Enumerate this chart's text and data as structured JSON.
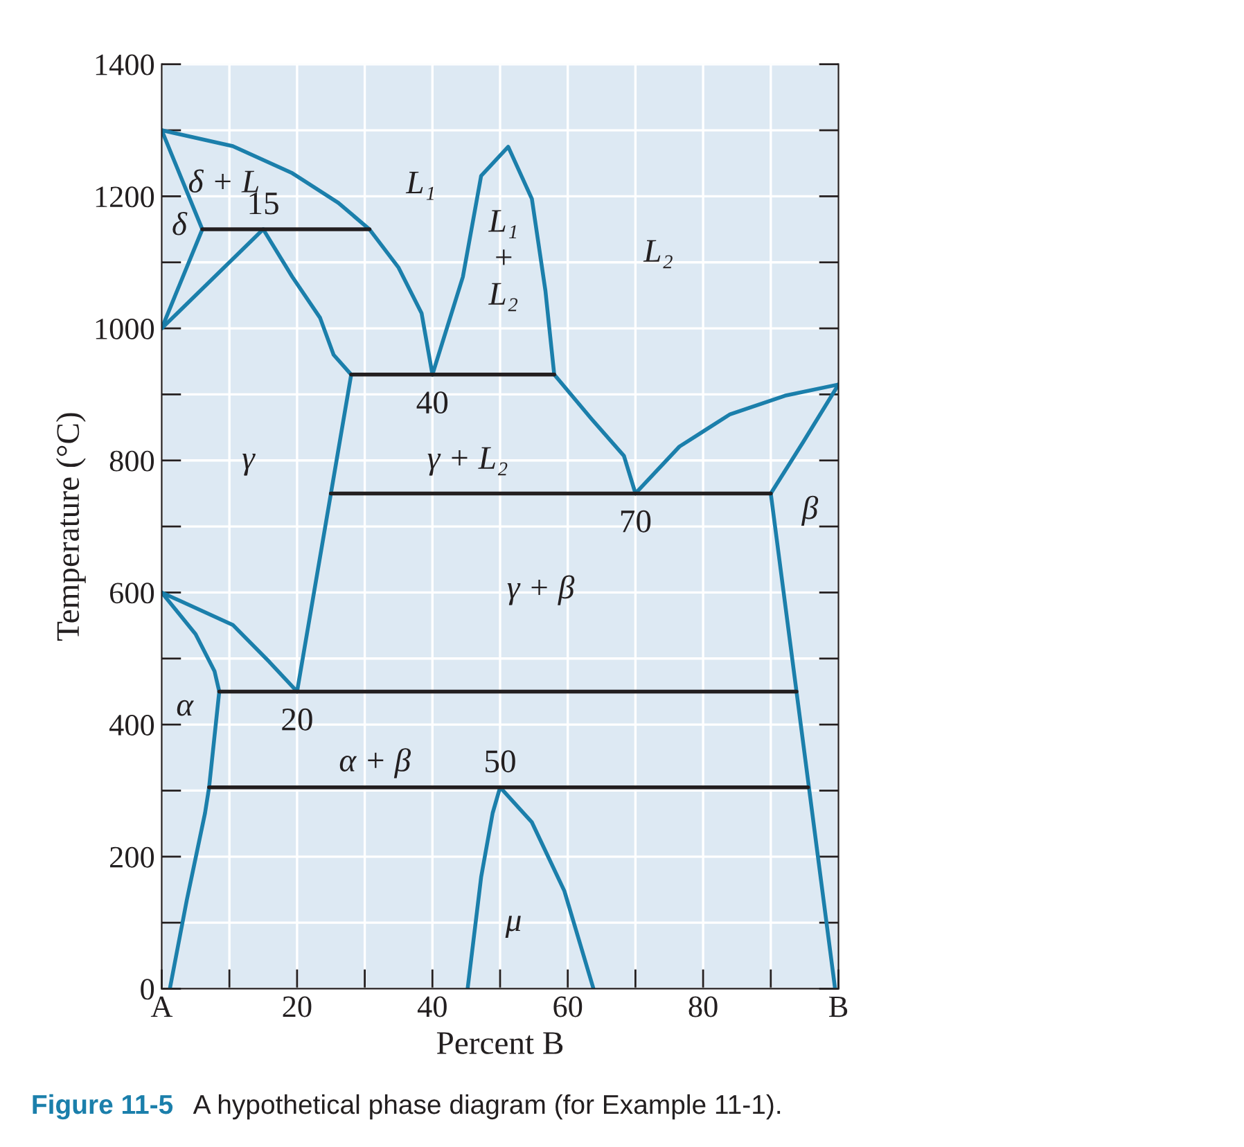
{
  "chart_data": {
    "type": "line",
    "xlabel": "Percent B",
    "ylabel": "Temperature (°C)",
    "xlim": [
      0,
      100
    ],
    "ylim": [
      0,
      1400
    ],
    "xticks": [
      {
        "value": 0,
        "label": "A"
      },
      {
        "value": 10,
        "label": null
      },
      20,
      {
        "value": 30,
        "label": null
      },
      40,
      {
        "value": 50,
        "label": null
      },
      60,
      {
        "value": 70,
        "label": null
      },
      80,
      {
        "value": 90,
        "label": null
      },
      {
        "value": 100,
        "label": "B"
      }
    ],
    "yticks": [
      0,
      {
        "value": 100,
        "label": null
      },
      200,
      {
        "value": 300,
        "label": null
      },
      400,
      {
        "value": 500,
        "label": null
      },
      600,
      {
        "value": 700,
        "label": null
      },
      800,
      {
        "value": 900,
        "label": null
      },
      1000,
      {
        "value": 1100,
        "label": null
      },
      1200,
      {
        "value": 1300,
        "label": null
      },
      1400
    ],
    "grid": true,
    "marker": "none",
    "line_style": "solid",
    "series": [
      {
        "color": "#1b7fab",
        "x": [
          0,
          6,
          0
        ],
        "values": [
          1300,
          1150,
          1000
        ]
      },
      {
        "color": "#1b7fab",
        "x": [
          0,
          15
        ],
        "values": [
          1000,
          1150
        ]
      },
      {
        "color": "#1b7fab",
        "x": [
          0,
          10.5,
          19.3,
          26.1,
          30.7,
          35,
          38.4,
          40
        ],
        "values": [
          1300,
          1276,
          1235,
          1190,
          1150,
          1092,
          1023,
          930
        ]
      },
      {
        "color": "#1b7fab",
        "x": [
          15,
          19.3,
          23.4,
          25.4,
          28
        ],
        "values": [
          1150,
          1078,
          1016,
          960,
          930
        ]
      },
      {
        "color": "#1b7fab",
        "x": [
          28,
          25,
          20
        ],
        "values": [
          930,
          750,
          450
        ]
      },
      {
        "color": "#1b7fab",
        "x": [
          40,
          44.5,
          47.2,
          51.2,
          54.7,
          56.7,
          58
        ],
        "values": [
          930,
          1078,
          1231,
          1275,
          1196,
          1057,
          930
        ]
      },
      {
        "color": "#1b7fab",
        "x": [
          58,
          63.5,
          68.3,
          70
        ],
        "values": [
          930,
          863,
          807,
          750
        ]
      },
      {
        "color": "#1b7fab",
        "x": [
          70,
          76.5,
          84,
          92.1,
          100
        ],
        "values": [
          750,
          821,
          870,
          898,
          915
        ]
      },
      {
        "color": "#1b7fab",
        "x": [
          100,
          94.8,
          90,
          99.5
        ],
        "values": [
          915,
          828,
          750,
          0
        ]
      },
      {
        "color": "#1b7fab",
        "x": [
          0,
          5,
          7.8,
          8.5,
          7,
          6.4,
          3.7,
          1.2
        ],
        "values": [
          600,
          537,
          481,
          450,
          305,
          266,
          134,
          0
        ]
      },
      {
        "color": "#1b7fab",
        "x": [
          0,
          10.5,
          15.9,
          20
        ],
        "values": [
          600,
          551,
          495,
          450
        ]
      },
      {
        "color": "#1b7fab",
        "x": [
          45.2,
          47.2,
          48.9,
          50,
          54.7,
          59.5,
          63.8
        ],
        "values": [
          0,
          169,
          266,
          305,
          252,
          148,
          0
        ]
      },
      {
        "color": "#231f20",
        "x": [
          6,
          30.7
        ],
        "values": [
          1150,
          1150
        ]
      },
      {
        "color": "#231f20",
        "x": [
          28,
          58
        ],
        "values": [
          930,
          930
        ]
      },
      {
        "color": "#231f20",
        "x": [
          25,
          90
        ],
        "values": [
          750,
          750
        ]
      },
      {
        "color": "#231f20",
        "x": [
          8.5,
          93.8
        ],
        "values": [
          450,
          450
        ]
      },
      {
        "color": "#231f20",
        "x": [
          7,
          95.5
        ],
        "values": [
          305,
          305
        ]
      }
    ],
    "annotations": [
      {
        "text": "15",
        "x": 15,
        "y": 1150
      },
      {
        "text": "40",
        "x": 40,
        "y": 930
      },
      {
        "text": "70",
        "x": 70,
        "y": 750
      },
      {
        "text": "20",
        "x": 20,
        "y": 450
      },
      {
        "text": "50",
        "x": 50,
        "y": 305
      },
      "δ + L",
      "δ",
      "L₁",
      "L₁\n+\nL₂",
      "L₂",
      "γ",
      "γ + L₂",
      "β",
      "γ + β",
      "α",
      "α + β",
      "μ",
      "Figure 11-5",
      "A hypothetical phase diagram (for Example 11-1)."
    ]
  }
}
